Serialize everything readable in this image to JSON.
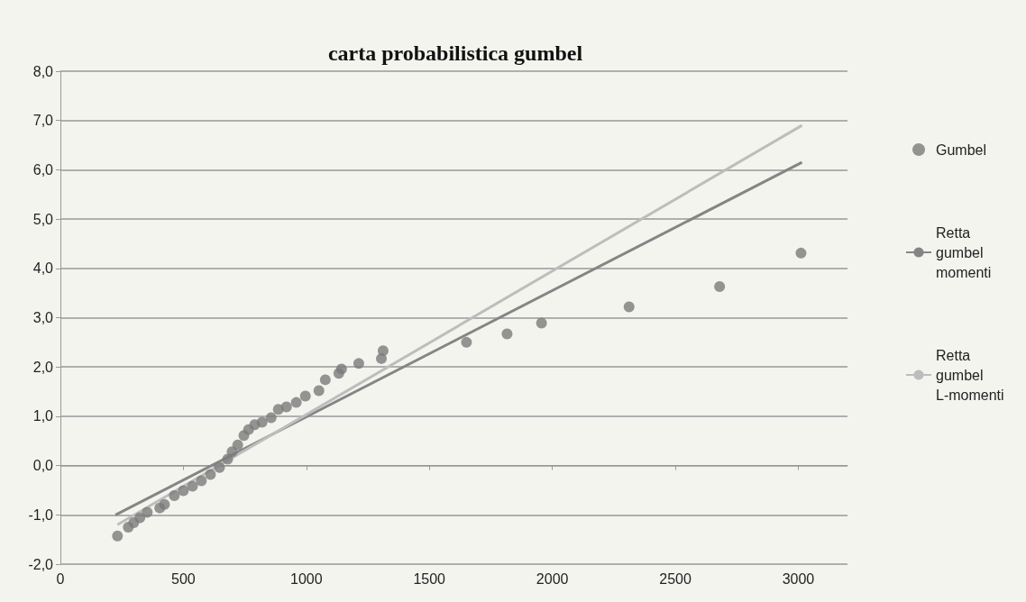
{
  "chart_data": {
    "type": "scatter",
    "title": "carta probabilistica gumbel",
    "xlim": [
      0,
      3200
    ],
    "xticks": [
      0,
      500,
      1000,
      1500,
      2000,
      2500,
      3000
    ],
    "ylim": [
      -2,
      8
    ],
    "yticks": [
      {
        "value": -2,
        "label": "-2,0"
      },
      {
        "value": -1,
        "label": "-1,0"
      },
      {
        "value": 0,
        "label": "0,0"
      },
      {
        "value": 1,
        "label": "1,0"
      },
      {
        "value": 2,
        "label": "2,0"
      },
      {
        "value": 3,
        "label": "3,0"
      },
      {
        "value": 4,
        "label": "4,0"
      },
      {
        "value": 5,
        "label": "5,0"
      },
      {
        "value": 6,
        "label": "6,0"
      },
      {
        "value": 7,
        "label": "7,0"
      },
      {
        "value": 8,
        "label": "8,0"
      }
    ],
    "grid": "y",
    "legend": "right",
    "series": [
      {
        "name": "Gumbel",
        "marker": "circle",
        "color": "#7a7a7a",
        "x": [
          232,
          276,
          298,
          323,
          353,
          404,
          423,
          463,
          500,
          537,
          573,
          610,
          647,
          680,
          698,
          721,
          746,
          765,
          790,
          820,
          857,
          886,
          919,
          959,
          996,
          1051,
          1077,
          1132,
          1143,
          1213,
          1305,
          1312,
          1651,
          1816,
          1956,
          2312,
          2680,
          3011
        ],
        "values": [
          -1.43,
          -1.25,
          -1.16,
          -1.06,
          -0.95,
          -0.86,
          -0.79,
          -0.61,
          -0.51,
          -0.42,
          -0.31,
          -0.18,
          -0.04,
          0.13,
          0.28,
          0.42,
          0.61,
          0.73,
          0.83,
          0.88,
          0.97,
          1.14,
          1.19,
          1.28,
          1.41,
          1.52,
          1.74,
          1.87,
          1.96,
          2.07,
          2.17,
          2.33,
          2.5,
          2.67,
          2.89,
          3.22,
          3.63,
          4.31
        ]
      },
      {
        "name": "Retta gumbel momenti",
        "type": "line",
        "marker": "none",
        "color": "#858585",
        "x": [
          224,
          3015
        ],
        "values": [
          -1.0,
          6.15
        ]
      },
      {
        "name": "Retta gumbel L-momenti",
        "type": "line",
        "marker": "none",
        "color": "#bdbdbd",
        "x": [
          232,
          3015
        ],
        "values": [
          -1.2,
          6.9
        ]
      }
    ]
  }
}
